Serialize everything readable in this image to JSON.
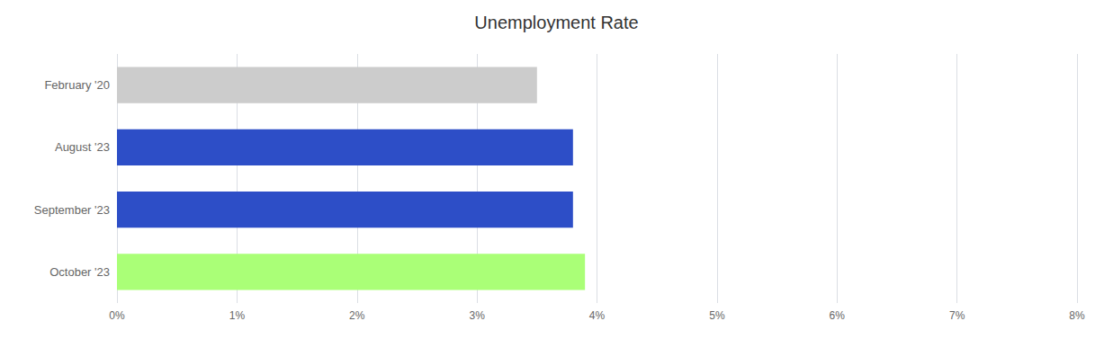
{
  "chart_data": {
    "type": "bar",
    "orientation": "horizontal",
    "title": "Unemployment Rate",
    "categories": [
      "October '23",
      "September '23",
      "August '23",
      "February '20"
    ],
    "values": [
      3.9,
      3.8,
      3.8,
      3.5
    ],
    "colors": [
      "#aaff77",
      "#2d4ec7",
      "#2d4ec7",
      "#cccccc"
    ],
    "xlim": [
      0,
      8
    ],
    "xticks": [
      {
        "value": 0,
        "label": "0%"
      },
      {
        "value": 1,
        "label": "1%"
      },
      {
        "value": 2,
        "label": "2%"
      },
      {
        "value": 3,
        "label": "3%"
      },
      {
        "value": 4,
        "label": "4%"
      },
      {
        "value": 5,
        "label": "5%"
      },
      {
        "value": 6,
        "label": "6%"
      },
      {
        "value": 7,
        "label": "7%"
      },
      {
        "value": 8,
        "label": "8%"
      }
    ],
    "grid": true
  }
}
